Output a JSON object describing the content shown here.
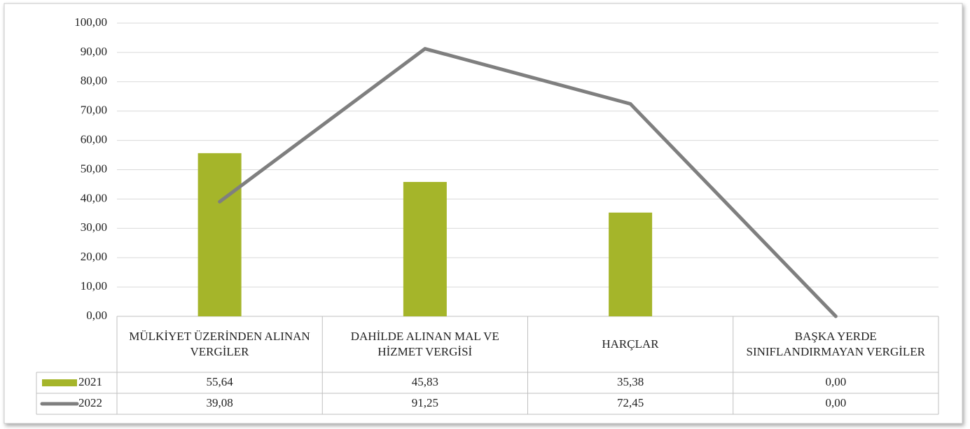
{
  "chart_data": {
    "type": "bar_line",
    "categories": [
      "MÜLKİYET ÜZERİNDEN ALINAN VERGİLER",
      "DAHİLDE ALINAN MAL VE HİZMET VERGİSİ",
      "HARÇLAR",
      "BAŞKA YERDE SINIFLANDIRMAYAN VERGİLER"
    ],
    "series": [
      {
        "name": "2021",
        "type": "bar",
        "color": "#a5b52a",
        "values": [
          55.64,
          45.83,
          35.38,
          0.0
        ],
        "value_labels": [
          "55,64",
          "45,83",
          "35,38",
          "0,00"
        ]
      },
      {
        "name": "2022",
        "type": "line",
        "color": "#7f7f7f",
        "values": [
          39.08,
          91.25,
          72.45,
          0.0
        ],
        "value_labels": [
          "39,08",
          "91,25",
          "72,45",
          "0,00"
        ]
      }
    ],
    "ylim": [
      0,
      100
    ],
    "yticks": [
      {
        "value": 0,
        "label": "0,00"
      },
      {
        "value": 10,
        "label": "10,00"
      },
      {
        "value": 20,
        "label": "20,00"
      },
      {
        "value": 30,
        "label": "30,00"
      },
      {
        "value": 40,
        "label": "40,00"
      },
      {
        "value": 50,
        "label": "50,00"
      },
      {
        "value": 60,
        "label": "60,00"
      },
      {
        "value": 70,
        "label": "70,00"
      },
      {
        "value": 80,
        "label": "80,00"
      },
      {
        "value": 90,
        "label": "90,00"
      },
      {
        "value": 100,
        "label": "100,00"
      }
    ],
    "grid": true
  }
}
